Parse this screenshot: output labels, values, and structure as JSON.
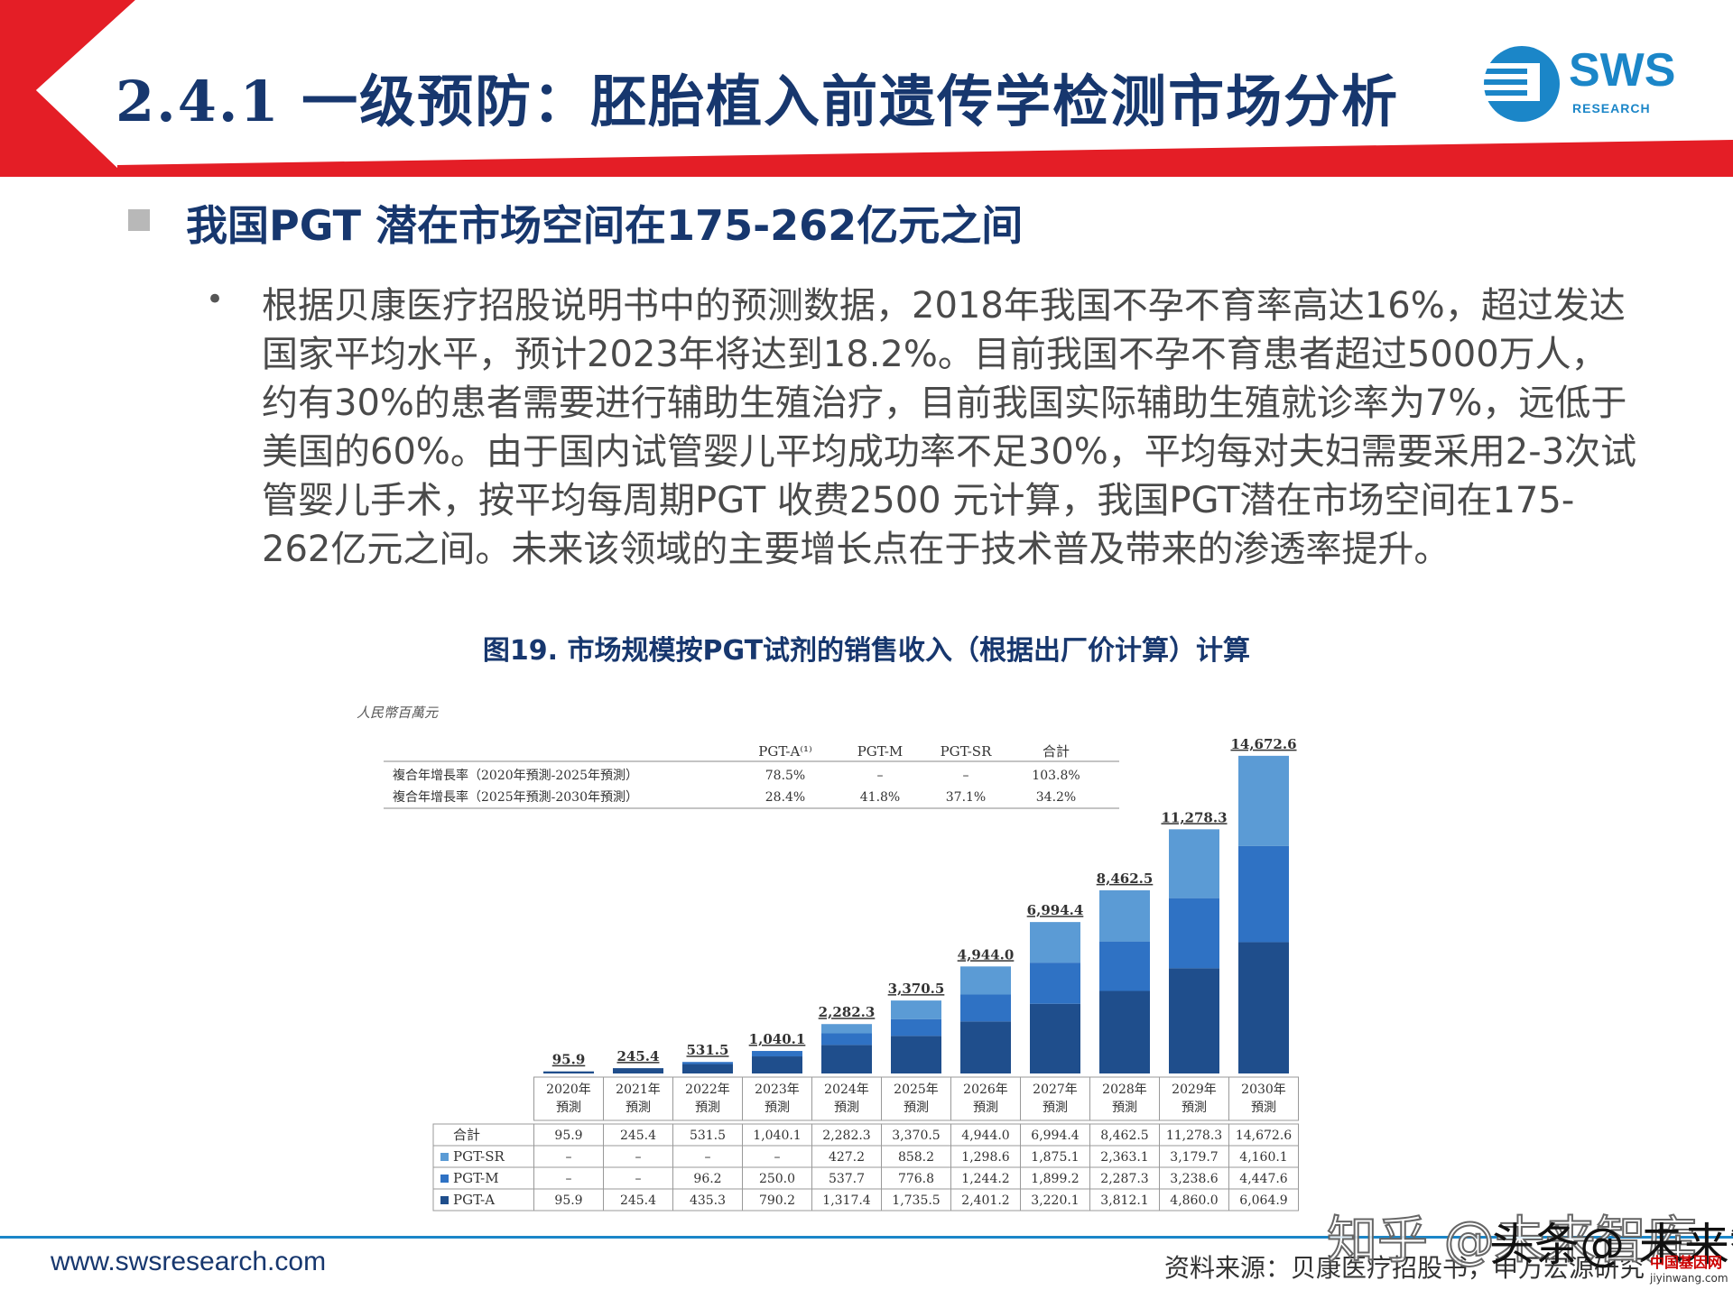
{
  "header": {
    "title": "2.4.1 一级预防：胚胎植入前遗传学检测市场分析",
    "logo_text": "SWS",
    "logo_sub": "RESEARCH"
  },
  "colors": {
    "navy": "#17376e",
    "red": "#e41e26",
    "sws_blue": "#1b86c8",
    "pgt_a": "#1f4e8c",
    "pgt_m": "#2f72c4",
    "pgt_sr": "#5b9bd5"
  },
  "section": {
    "subheading": "我国PGT 潜在市场空间在175-262亿元之间",
    "bullet": "•",
    "paragraph": "根据贝康医疗招股说明书中的预测数据，2018年我国不孕不育率高达16%，超过发达国家平均水平，预计2023年将达到18.2%。目前我国不孕不育患者超过5000万人，约有30%的患者需要进行辅助生殖治疗，目前我国实际辅助生殖就诊率为7%，远低于美国的60%。由于国内试管婴儿平均成功率不足30%，平均每对夫妇需要采用2-3次试管婴儿手术，按平均每周期PGT 收费2500 元计算，我国PGT潜在市场空间在175-262亿元之间。未来该领域的主要增长点在于技术普及带来的渗透率提升。"
  },
  "figure": {
    "title": "图19. 市场规模按PGT试剂的销售收入（根据出厂价计算）计算"
  },
  "chart_data": {
    "type": "bar",
    "stacked": true,
    "unit_label": "人民幣百萬元",
    "categories": [
      "2020年\n預測",
      "2021年\n預測",
      "2022年\n預測",
      "2023年\n預測",
      "2024年\n預測",
      "2025年\n預測",
      "2026年\n預測",
      "2027年\n預測",
      "2028年\n預測",
      "2029年\n預測",
      "2030年\n預測"
    ],
    "totals_labels": [
      "95.9",
      "245.4",
      "531.5",
      "1,040.1",
      "2,282.3",
      "3,370.5",
      "4,944.0",
      "6,994.4",
      "8,462.5",
      "11,278.3",
      "14,672.6"
    ],
    "totals": [
      95.9,
      245.4,
      531.5,
      1040.1,
      2282.3,
      3370.5,
      4944.0,
      6994.4,
      8462.5,
      11278.3,
      14672.6
    ],
    "series": [
      {
        "name": "PGT-A",
        "color": "#1f4e8c",
        "values": [
          95.9,
          245.4,
          435.3,
          790.2,
          1317.4,
          1735.5,
          2401.2,
          3220.1,
          3812.1,
          4860.0,
          6064.9
        ],
        "labels": [
          "95.9",
          "245.4",
          "435.3",
          "790.2",
          "1,317.4",
          "1,735.5",
          "2,401.2",
          "3,220.1",
          "3,812.1",
          "4,860.0",
          "6,064.9"
        ]
      },
      {
        "name": "PGT-M",
        "color": "#2f72c4",
        "values": [
          0,
          0,
          96.2,
          250.0,
          537.7,
          776.8,
          1244.2,
          1899.2,
          2287.3,
          3238.6,
          4447.6
        ],
        "labels": [
          "–",
          "–",
          "96.2",
          "250.0",
          "537.7",
          "776.8",
          "1,244.2",
          "1,899.2",
          "2,287.3",
          "3,238.6",
          "4,447.6"
        ]
      },
      {
        "name": "PGT-SR",
        "color": "#5b9bd5",
        "values": [
          0,
          0,
          0,
          0,
          427.2,
          858.2,
          1298.6,
          1875.1,
          2363.1,
          3179.7,
          4160.1
        ],
        "labels": [
          "–",
          "–",
          "–",
          "–",
          "427.2",
          "858.2",
          "1,298.6",
          "1,875.1",
          "2,363.1",
          "3,179.7",
          "4,160.1"
        ]
      }
    ],
    "table_total_label": "合計",
    "cagr_table": {
      "headers": [
        "",
        "PGT-A⁽¹⁾",
        "PGT-M",
        "PGT-SR",
        "合計"
      ],
      "rows": [
        [
          "複合年增長率（2020年預測-2025年預測）",
          "78.5%",
          "–",
          "–",
          "103.8%"
        ],
        [
          "複合年增長率（2025年預測-2030年預測）",
          "28.4%",
          "41.8%",
          "37.1%",
          "34.2%"
        ]
      ]
    }
  },
  "footer": {
    "url": "www.swsresearch.com",
    "source": "资料来源：贝康医疗招股书，申万宏源研究",
    "watermark_zhihu": "知乎 @未来智库",
    "watermark_toutiao": "头条@ 未来智库",
    "watermark_site": "中国基因网",
    "watermark_site_url": "jiyinwang.com"
  }
}
